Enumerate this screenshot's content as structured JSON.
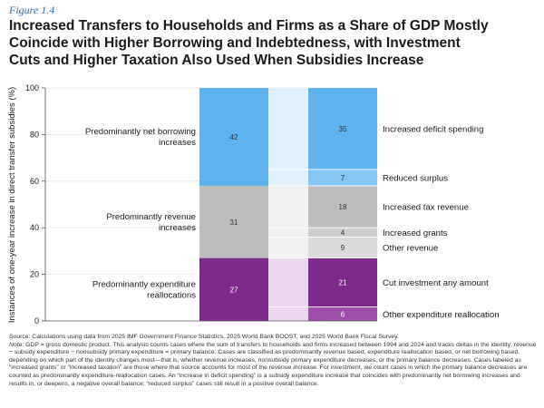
{
  "figure_label": "Figure 1.4",
  "title_lines": [
    "Increased Transfers to Households and Firms as a Share of GDP Mostly",
    "Coincide with Higher Borrowing and Indebtedness, with Investment",
    "Cuts and Higher Taxation Also Used When Subsidies Increase"
  ],
  "chart_data": {
    "type": "bar",
    "ylabel": "Instances of one-year increase in direct transfer subsidies (%)",
    "ylim": [
      0,
      100
    ],
    "yticks": [
      0,
      20,
      40,
      60,
      80,
      100
    ],
    "left_bar": {
      "segments": [
        {
          "key": "expenditure",
          "value": 27,
          "color": "#7e2a8c",
          "label_lines": [
            "Predominantly expenditure",
            "reallocations"
          ]
        },
        {
          "key": "revenue",
          "value": 31,
          "color": "#bdbdbd",
          "label_lines": [
            "Predominantly revenue",
            "increases"
          ]
        },
        {
          "key": "borrowing",
          "value": 42,
          "color": "#5eb3ee",
          "label_lines": [
            "Predominantly net borrowing",
            "increases"
          ]
        }
      ]
    },
    "right_bar": {
      "segments": [
        {
          "group": "expenditure",
          "value": 6,
          "color": "#9d4faa",
          "label": "Other expenditure reallocation"
        },
        {
          "group": "expenditure",
          "value": 21,
          "color": "#7e2a8c",
          "label": "Cut investment any amount"
        },
        {
          "group": "revenue",
          "value": 9,
          "color": "#dadada",
          "label": "Other revenue"
        },
        {
          "group": "revenue",
          "value": 4,
          "color": "#cecece",
          "label": "Increased grants"
        },
        {
          "group": "revenue",
          "value": 18,
          "color": "#bdbdbd",
          "label": "Increased tax revenue"
        },
        {
          "group": "borrowing",
          "value": 7,
          "color": "#86c6f2",
          "label": "Reduced surplus"
        },
        {
          "group": "borrowing",
          "value": 35,
          "color": "#5eb3ee",
          "label": "Increased deficit spending"
        }
      ]
    },
    "connector_colors": {
      "expenditure": "#ead7ee",
      "revenue": "#f1f1f1",
      "borrowing": "#e0f0fc"
    }
  },
  "source": {
    "line": "Source: Calculations using data from 2025 IMF Government Finance Statistics, 2025 World Bank BOOST, and 2025 World Bank Fiscal Survey.",
    "note_label": "Note:",
    "note_text": " GDP = gross domestic product. This analysis counts cases where the sum of transfers to households and firms increased between 1994 and 2024 and tracks deltas in the identity: revenue − subsidy expenditure − nonsubsidy primary expenditure = primary balance. Cases are classified as predominantly revenue based, expenditure reallocation based, or net borrowing based, depending on which part of the identity changes most—that is, whether revenue increases, nonsubsidy primary expenditure decreases, or the primary balance decreases. Cases labeled as “increased grants” or “increased taxation” are those where that source accounts for most of the revenue increase. For investment, we count cases in which the primary balance decreases are counted as predominantly expenditure-reallocation cases. An “increase in deficit spending” is a subsidy expenditure increase that coincides with predominantly net borrowing increases and results in, or deepens, a negative overall balance; “reduced surplus” cases still result in a positive overall balance."
  }
}
